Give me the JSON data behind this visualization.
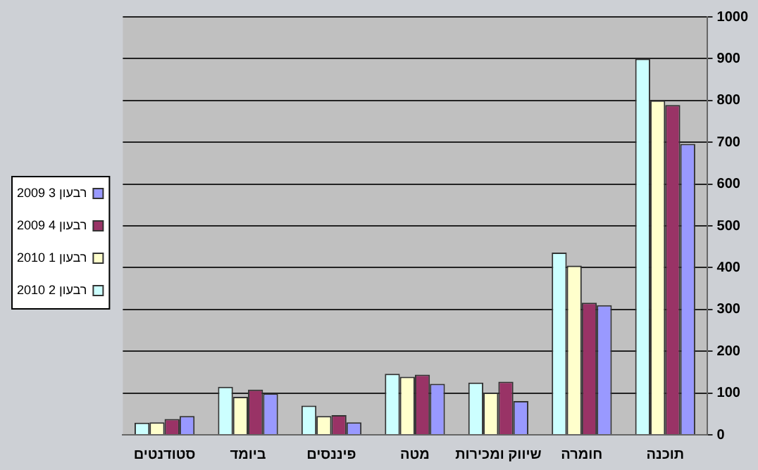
{
  "chart_data": {
    "type": "bar",
    "categories": [
      "סטודנטים",
      "ביומד",
      "פיננסים",
      "מטה",
      "שיווק ומכירות",
      "חומרה",
      "תוכנה"
    ],
    "series": [
      {
        "name": "רבעון 2 2010",
        "color": "#ccffff",
        "values": [
          29,
          115,
          70,
          146,
          125,
          436,
          900
        ]
      },
      {
        "name": "רבעון 1 2010",
        "color": "#ffffcc",
        "values": [
          30,
          91,
          45,
          139,
          101,
          405,
          800
        ]
      },
      {
        "name": "רבעון 4 2009",
        "color": "#993366",
        "values": [
          38,
          108,
          47,
          144,
          127,
          316,
          789
        ]
      },
      {
        "name": "רבעון 3 2009",
        "color": "#9999ff",
        "values": [
          45,
          99,
          30,
          122,
          81,
          310,
          696
        ]
      }
    ],
    "ylim": [
      0,
      1000
    ],
    "yticks": [
      0,
      100,
      200,
      300,
      400,
      500,
      600,
      700,
      800,
      900,
      1000
    ],
    "grid": "y",
    "legend": "left"
  }
}
